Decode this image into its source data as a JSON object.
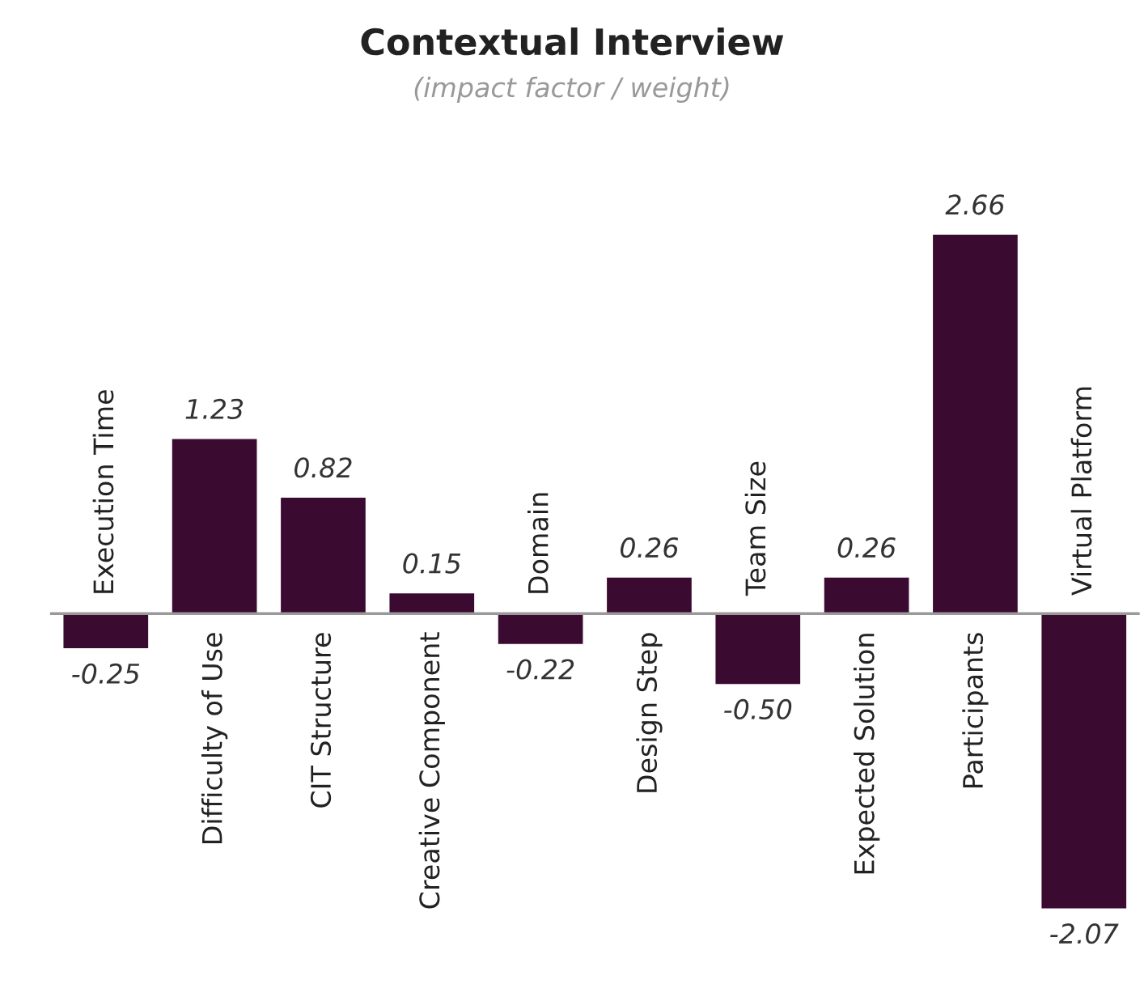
{
  "chart_data": {
    "type": "bar",
    "title": "Contextual Interview",
    "subtitle": "(impact factor / weight)",
    "categories": [
      "Execution Time",
      "Difficulty of Use",
      "CIT Structure",
      "Creative Component",
      "Domain",
      "Design Step",
      "Team Size",
      "Expected Solution",
      "Participants",
      "Virtual Platform"
    ],
    "values": [
      -0.25,
      1.23,
      0.82,
      0.15,
      -0.22,
      0.26,
      -0.5,
      0.26,
      2.66,
      -2.07
    ],
    "value_labels": [
      "-0.25",
      "1.23",
      "0.82",
      "0.15",
      "-0.22",
      "0.26",
      "-0.50",
      "0.26",
      "2.66",
      "-2.07"
    ],
    "color": "#3b0a31"
  }
}
